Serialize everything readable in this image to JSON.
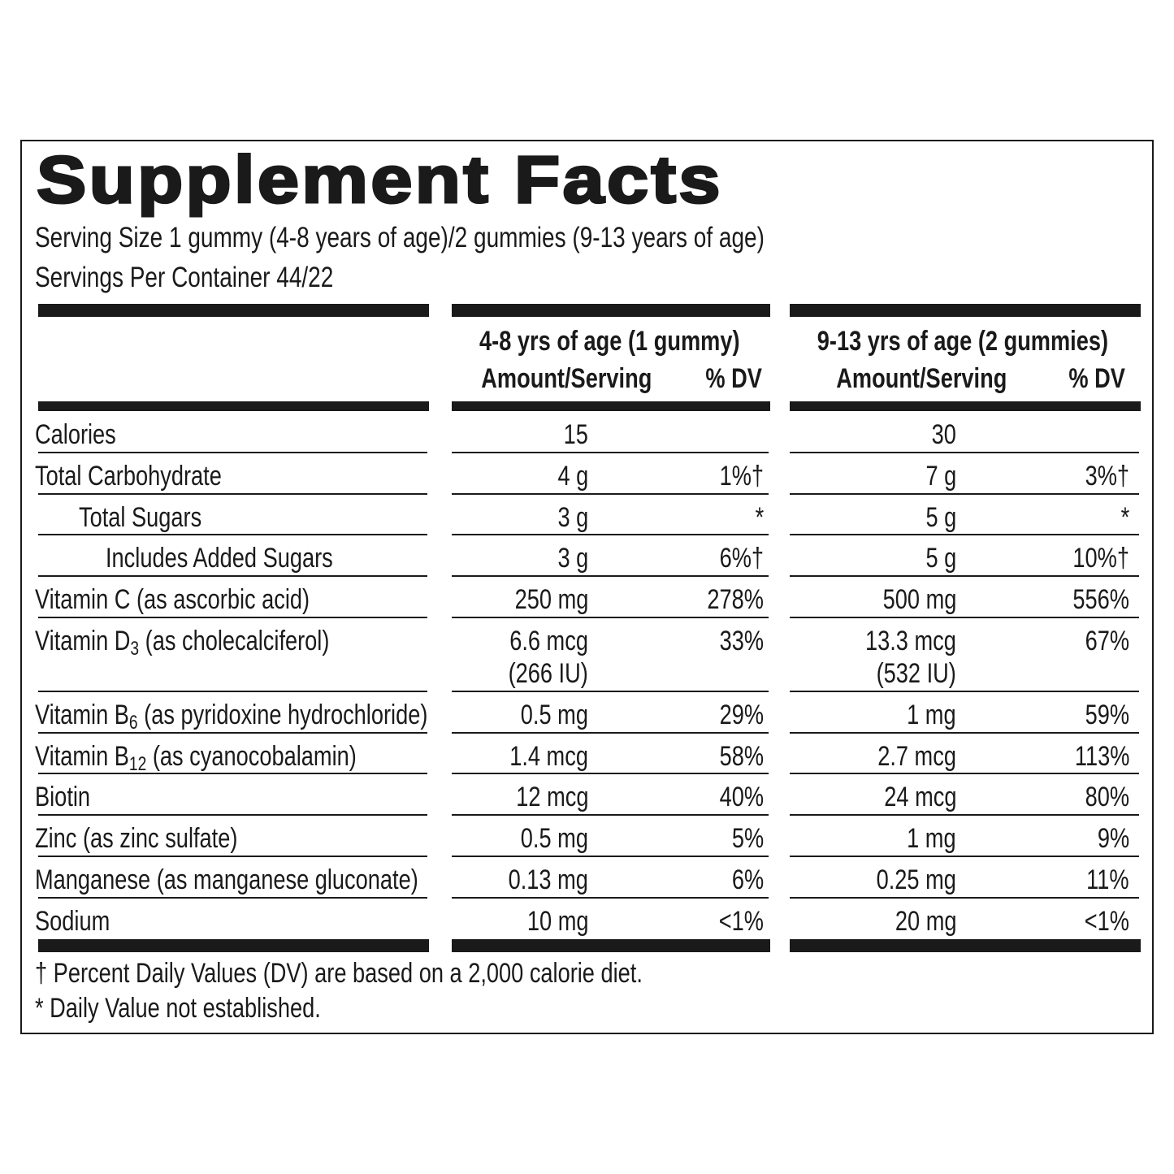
{
  "title": "Supplement Facts",
  "serving_size": "Serving Size 1 gummy (4-8 years of age)/2 gummies (9-13 years of age)",
  "servings_per_container": "Servings Per Container 44/22",
  "columns": [
    {
      "group": "4-8 yrs of age (1 gummy)",
      "amount_header": "Amount/Serving",
      "dv_header": "% DV"
    },
    {
      "group": "9-13 yrs of age (2 gummies)",
      "amount_header": "Amount/Serving",
      "dv_header": "% DV"
    }
  ],
  "rows": [
    {
      "name": "Calories",
      "values": [
        {
          "amount": "15"
        },
        {
          "amount": "30"
        }
      ]
    },
    {
      "name": "Total Carbohydrate",
      "values": [
        {
          "amount": "4 g",
          "dv": "1%†"
        },
        {
          "amount": "7 g",
          "dv": "3%†"
        }
      ]
    },
    {
      "name": "Total Sugars",
      "values": [
        {
          "amount": "3 g",
          "dv": "*"
        },
        {
          "amount": "5 g",
          "dv": "*"
        }
      ]
    },
    {
      "name": "Includes Added Sugars",
      "values": [
        {
          "amount": "3 g",
          "dv": "6%†"
        },
        {
          "amount": "5 g",
          "dv": "10%†"
        }
      ]
    },
    {
      "name": "Vitamin C (as ascorbic acid)",
      "values": [
        {
          "amount": "250 mg",
          "dv": "278%"
        },
        {
          "amount": "500 mg",
          "dv": "556%"
        }
      ]
    },
    {
      "name": "Vitamin D",
      "sub": "3",
      "name_end": " (as cholecalciferol)",
      "values": [
        {
          "amount": "6.6 mcg",
          "amount_note": "(266 IU)",
          "dv": "33%"
        },
        {
          "amount": "13.3 mcg",
          "amount_note": "(532 IU)",
          "dv": "67%"
        }
      ]
    },
    {
      "name": "Vitamin B",
      "sub": "6",
      "name_end": " (as pyridoxine hydrochloride)",
      "values": [
        {
          "amount": "0.5 mg",
          "dv": "29%"
        },
        {
          "amount": "1 mg",
          "dv": "59%"
        }
      ]
    },
    {
      "name": "Vitamin B",
      "sub": "12",
      "name_end": " (as cyanocobalamin)",
      "values": [
        {
          "amount": "1.4 mcg",
          "dv": "58%"
        },
        {
          "amount": "2.7 mcg",
          "dv": "113%"
        }
      ]
    },
    {
      "name": "Biotin",
      "values": [
        {
          "amount": "12 mcg",
          "dv": "40%"
        },
        {
          "amount": "24 mcg",
          "dv": "80%"
        }
      ]
    },
    {
      "name": "Zinc (as zinc sulfate)",
      "values": [
        {
          "amount": "0.5 mg",
          "dv": "5%"
        },
        {
          "amount": "1 mg",
          "dv": "9%"
        }
      ]
    },
    {
      "name": "Manganese (as manganese gluconate)",
      "values": [
        {
          "amount": "0.13 mg",
          "dv": "6%"
        },
        {
          "amount": "0.25 mg",
          "dv": "11%"
        }
      ]
    },
    {
      "name": "Sodium",
      "values": [
        {
          "amount": "10 mg",
          "dv": "<1%"
        },
        {
          "amount": "20 mg",
          "dv": "<1%"
        }
      ]
    }
  ],
  "footnotes": [
    "† Percent Daily Values (DV) are based on a 2,000 calorie diet.",
    "* Daily Value not established."
  ]
}
